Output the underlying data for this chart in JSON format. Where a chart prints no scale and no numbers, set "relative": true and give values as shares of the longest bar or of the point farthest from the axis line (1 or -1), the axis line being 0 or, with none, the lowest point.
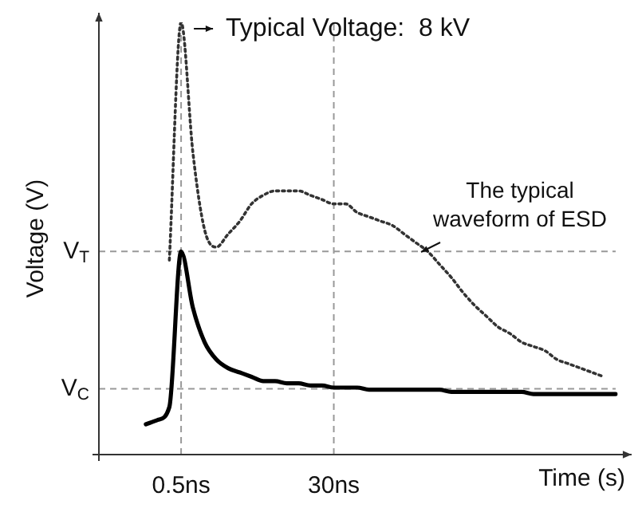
{
  "chart_data": {
    "type": "line",
    "relative": true,
    "xlabel": "Time (s)",
    "ylabel": "Voltage (V)",
    "categories": [
      null,
      null,
      null,
      null,
      null,
      null,
      null,
      "0.5ns",
      null,
      null,
      null,
      null,
      null,
      null,
      null,
      null,
      null,
      null,
      null,
      null,
      "30ns",
      null,
      null,
      null,
      null,
      null,
      null,
      null,
      null,
      null,
      null,
      null,
      null,
      null,
      null,
      null,
      null,
      null,
      null,
      null,
      null,
      null,
      null,
      null,
      null
    ],
    "series": [
      {
        "color": "#333333",
        "line_style": "dotted",
        "values": [
          null,
          null,
          null,
          null,
          null,
          null,
          0.45,
          1.0,
          0.7,
          0.52,
          0.48,
          0.51,
          0.54,
          0.58,
          0.6,
          0.61,
          0.61,
          0.61,
          0.6,
          0.59,
          0.58,
          0.58,
          0.56,
          0.55,
          0.54,
          0.53,
          0.51,
          0.49,
          0.47,
          0.44,
          0.41,
          0.375,
          0.345,
          0.32,
          0.295,
          0.28,
          0.26,
          0.25,
          0.24,
          0.22,
          0.21,
          0.2,
          0.19,
          0.18,
          null
        ]
      },
      {
        "color": "#000000",
        "line_style": "solid",
        "values": [
          null,
          null,
          null,
          null,
          0.07,
          0.08,
          0.11,
          0.47,
          0.34,
          0.26,
          0.22,
          0.2,
          0.19,
          0.18,
          0.17,
          0.17,
          0.165,
          0.165,
          0.16,
          0.16,
          0.155,
          0.155,
          0.155,
          0.15,
          0.15,
          0.15,
          0.15,
          0.15,
          0.15,
          0.15,
          0.145,
          0.145,
          0.145,
          0.145,
          0.145,
          0.145,
          0.145,
          0.14,
          0.14,
          0.14,
          0.14,
          0.14,
          0.14,
          0.14,
          0.14
        ]
      }
    ],
    "ref_lines": [
      {
        "axis": "y",
        "value": 0.47,
        "label": "V$_{T}$",
        "color": "#999999",
        "line_style": "dashed"
      },
      {
        "axis": "y",
        "value": 0.152,
        "label": "V$_{C}$",
        "color": "#999999",
        "line_style": "dashed"
      },
      {
        "axis": "x",
        "value": "0.5ns",
        "color": "#999999",
        "line_style": "dashed"
      },
      {
        "axis": "x",
        "value": "30ns",
        "color": "#999999",
        "line_style": "dashed"
      }
    ],
    "annotations": [
      {
        "text": "Typical Voltage:  8 kV",
        "x": "0.5ns",
        "y": 1.0
      },
      "The typical waveform of ESD"
    ],
    "marker": "none",
    "grid": false,
    "legend": false
  }
}
